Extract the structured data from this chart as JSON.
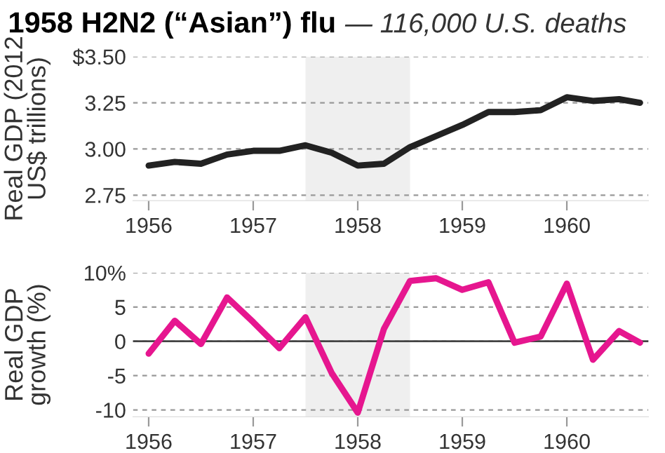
{
  "chart_data": [
    {
      "type": "line",
      "title": "1958 H2N2 (“Asian”) flu",
      "subtitle": "— 116,000 U.S. deaths",
      "ylabel": "Real GDP (2012\nUS$ trillions)",
      "x": [
        1956.0,
        1956.25,
        1956.5,
        1956.75,
        1957.0,
        1957.25,
        1957.5,
        1957.75,
        1958.0,
        1958.25,
        1958.5,
        1958.75,
        1959.0,
        1959.25,
        1959.5,
        1959.75,
        1960.0,
        1960.25,
        1960.5,
        1960.7
      ],
      "series": [
        {
          "color": "#222222",
          "values": [
            2.91,
            2.93,
            2.92,
            2.97,
            2.99,
            2.99,
            3.02,
            2.98,
            2.91,
            2.92,
            3.01,
            3.07,
            3.13,
            3.2,
            3.2,
            3.21,
            3.28,
            3.26,
            3.27,
            3.25
          ]
        }
      ],
      "xlim": [
        1955.85,
        1960.78
      ],
      "xticks": [
        1956,
        1957,
        1958,
        1959,
        1960
      ],
      "ylim": [
        2.72,
        3.5
      ],
      "yticks": [
        {
          "value": 3.5,
          "label": "$3.50"
        },
        {
          "value": 3.25,
          "label": "3.25"
        },
        {
          "value": 3.0,
          "label": "3.00"
        },
        {
          "value": 2.75,
          "label": "2.75"
        }
      ],
      "bands": [
        {
          "axis": "x",
          "from": 1957.5,
          "to": 1958.5,
          "color": "#efefef"
        }
      ],
      "grid": "y",
      "line_style": "solid",
      "marker": "none"
    },
    {
      "type": "line",
      "ylabel": "Real GDP\ngrowth (%)",
      "x": [
        1956.0,
        1956.25,
        1956.5,
        1956.75,
        1957.0,
        1957.25,
        1957.5,
        1957.75,
        1958.0,
        1958.25,
        1958.5,
        1958.75,
        1959.0,
        1959.25,
        1959.5,
        1959.75,
        1960.0,
        1960.25,
        1960.5,
        1960.7
      ],
      "series": [
        {
          "color": "#e6168f",
          "values": [
            -1.8,
            3.0,
            -0.4,
            6.4,
            2.8,
            -1.0,
            3.5,
            -4.6,
            -10.4,
            1.8,
            8.8,
            9.2,
            7.5,
            8.6,
            -0.2,
            0.7,
            8.4,
            -2.7,
            1.5,
            -0.2
          ]
        }
      ],
      "xlim": [
        1955.85,
        1960.78
      ],
      "xticks": [
        1956,
        1957,
        1958,
        1959,
        1960
      ],
      "ylim": [
        -11,
        10
      ],
      "yticks": [
        {
          "value": 10,
          "label": "10%"
        },
        5,
        0,
        -5,
        -10
      ],
      "bands": [
        {
          "axis": "x",
          "from": 1957.5,
          "to": 1958.5,
          "color": "#efefef"
        }
      ],
      "ref_lines": [
        {
          "axis": "y",
          "value": 0,
          "color": "#444444"
        }
      ],
      "grid": "y",
      "line_style": "solid",
      "marker": "none"
    }
  ]
}
